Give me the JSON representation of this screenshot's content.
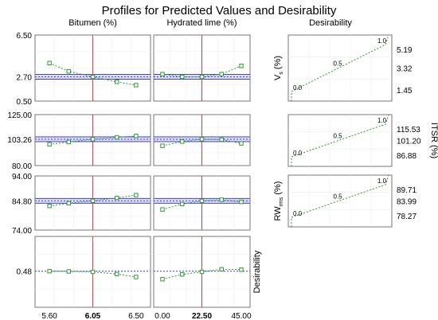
{
  "chart_data": {
    "type": "line",
    "title": "Profiles for Predicted Values and Desirability",
    "columns": [
      {
        "title": "Bitumen (%)",
        "x": [
          5.6,
          5.8,
          6.05,
          6.3,
          6.5
        ],
        "xticks": [
          "5.60",
          "6.05",
          "6.50"
        ],
        "current": 6.05,
        "current_label": "6.05",
        "xlim": [
          5.45,
          6.65
        ]
      },
      {
        "title": "Hydrated lime (%)",
        "x": [
          0,
          11.25,
          22.5,
          33.75,
          45
        ],
        "xticks": [
          "0.00",
          "22.50",
          "45.00"
        ],
        "current": 22.5,
        "current_label": "22.50",
        "xlim": [
          -5,
          50
        ]
      }
    ],
    "rows": [
      {
        "name": "Vs",
        "ylim": [
          0.5,
          6.5
        ],
        "yticks": [
          "6.50",
          "2.70",
          "0.50"
        ],
        "current": 2.7,
        "series": [
          [
            3.95,
            3.2,
            2.7,
            2.25,
            1.95
          ],
          [
            2.95,
            2.7,
            2.7,
            2.95,
            3.7
          ]
        ]
      },
      {
        "name": "ITSR",
        "ylim": [
          80,
          125
        ],
        "yticks": [
          "125.00",
          "103.26",
          "80.00"
        ],
        "current": 103.26,
        "series": [
          [
            98.8,
            100.8,
            103.26,
            104.9,
            106.2
          ],
          [
            97.5,
            101.2,
            103.26,
            102.9,
            99.6
          ]
        ]
      },
      {
        "name": "RW",
        "ylim": [
          74,
          94
        ],
        "yticks": [
          "94.00",
          "84.80",
          "74.00"
        ],
        "current": 84.8,
        "series": [
          [
            82.9,
            83.9,
            84.8,
            85.9,
            86.9
          ],
          [
            81.6,
            83.6,
            84.8,
            85.2,
            84.4
          ]
        ]
      },
      {
        "name": "Desirability",
        "ylim": [
          0.2,
          0.75
        ],
        "yticks": [
          "0.48"
        ],
        "current": 0.48,
        "series": [
          [
            0.48,
            0.478,
            0.475,
            0.458,
            0.435
          ],
          [
            0.418,
            0.455,
            0.475,
            0.495,
            0.492
          ]
        ]
      }
    ],
    "row_label": "Desirability",
    "desirability": {
      "title": "Desirability",
      "panels": [
        {
          "ylabel": "Vs (%)",
          "ylabel_main": "V",
          "ylabel_sub": "s",
          "ylabel_rest": " (%)",
          "ylabel_side": "left",
          "yticks": [
            "5.19",
            "3.32",
            "1.45"
          ],
          "range": [
            1.45,
            5.19
          ]
        },
        {
          "ylabel": "ITSR (%)",
          "ylabel_main": "ITSR (%)",
          "ylabel_sub": "",
          "ylabel_rest": "",
          "ylabel_side": "right",
          "yticks": [
            "115.53",
            "101.20",
            "86.88"
          ],
          "range": [
            86.88,
            115.53
          ]
        },
        {
          "ylabel": "RWrms (%)",
          "ylabel_main": "RW",
          "ylabel_sub": "rms",
          "ylabel_rest": " (%)",
          "ylabel_side": "left",
          "yticks": [
            "89.71",
            "83.99",
            "78.27"
          ],
          "range": [
            78.27,
            89.71
          ]
        }
      ],
      "labels": [
        "0.0",
        "0.5",
        "1.0"
      ]
    }
  }
}
